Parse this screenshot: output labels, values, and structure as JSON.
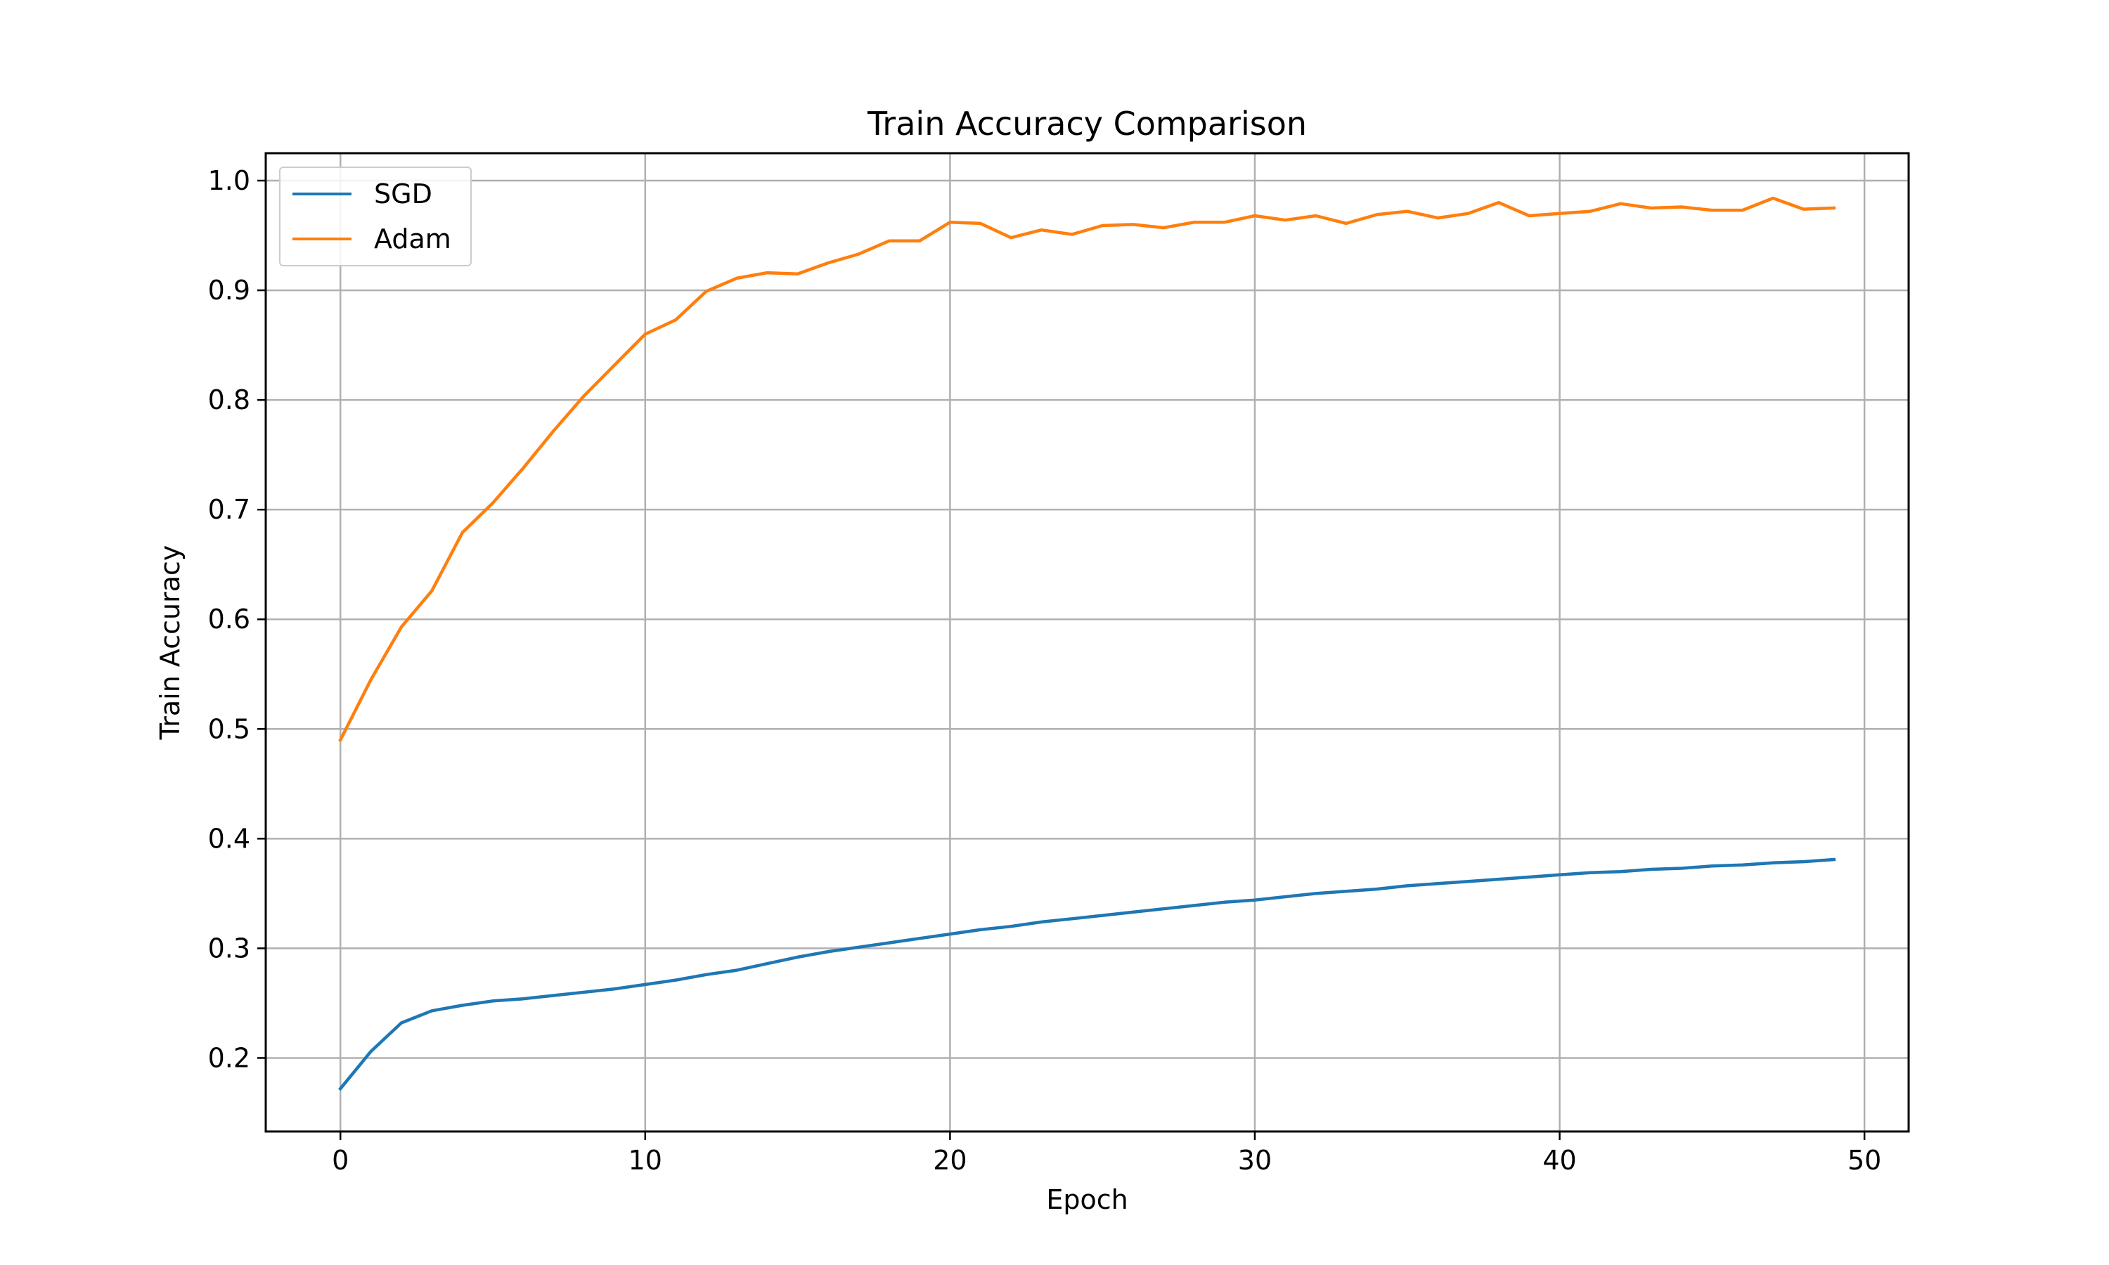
{
  "chart_data": {
    "type": "line",
    "title": "Train Accuracy Comparison",
    "xlabel": "Epoch",
    "ylabel": "Train Accuracy",
    "xlim": [
      -2.45,
      51.45
    ],
    "ylim": [
      0.133,
      1.025
    ],
    "xticks": [
      0,
      10,
      20,
      30,
      40,
      50
    ],
    "yticks": [
      0.2,
      0.3,
      0.4,
      0.5,
      0.6,
      0.7,
      0.8,
      0.9,
      1.0
    ],
    "xtick_labels": [
      "0",
      "10",
      "20",
      "30",
      "40",
      "50"
    ],
    "ytick_labels": [
      "0.2",
      "0.3",
      "0.4",
      "0.5",
      "0.6",
      "0.7",
      "0.8",
      "0.9",
      "1.0"
    ],
    "grid": true,
    "legend_position": "top-left",
    "x": [
      0,
      1,
      2,
      3,
      4,
      5,
      6,
      7,
      8,
      9,
      10,
      11,
      12,
      13,
      14,
      15,
      16,
      17,
      18,
      19,
      20,
      21,
      22,
      23,
      24,
      25,
      26,
      27,
      28,
      29,
      30,
      31,
      32,
      33,
      34,
      35,
      36,
      37,
      38,
      39,
      40,
      41,
      42,
      43,
      44,
      45,
      46,
      47,
      48,
      49
    ],
    "series": [
      {
        "name": "SGD",
        "color": "#1f77b4",
        "values": [
          0.172,
          0.206,
          0.232,
          0.243,
          0.248,
          0.252,
          0.254,
          0.257,
          0.26,
          0.263,
          0.267,
          0.271,
          0.276,
          0.28,
          0.286,
          0.292,
          0.297,
          0.301,
          0.305,
          0.309,
          0.313,
          0.317,
          0.32,
          0.324,
          0.327,
          0.33,
          0.333,
          0.336,
          0.339,
          0.342,
          0.344,
          0.347,
          0.35,
          0.352,
          0.354,
          0.357,
          0.359,
          0.361,
          0.363,
          0.365,
          0.367,
          0.369,
          0.37,
          0.372,
          0.373,
          0.375,
          0.376,
          0.378,
          0.379,
          0.381
        ]
      },
      {
        "name": "Adam",
        "color": "#ff7f0e",
        "values": [
          0.49,
          0.545,
          0.593,
          0.626,
          0.679,
          0.706,
          0.738,
          0.772,
          0.804,
          0.832,
          0.86,
          0.873,
          0.899,
          0.911,
          0.916,
          0.915,
          0.925,
          0.933,
          0.945,
          0.945,
          0.962,
          0.961,
          0.948,
          0.955,
          0.951,
          0.959,
          0.96,
          0.957,
          0.962,
          0.962,
          0.968,
          0.964,
          0.968,
          0.961,
          0.969,
          0.972,
          0.966,
          0.97,
          0.98,
          0.968,
          0.97,
          0.972,
          0.979,
          0.975,
          0.976,
          0.973,
          0.973,
          0.984,
          0.974,
          0.975
        ]
      }
    ]
  }
}
